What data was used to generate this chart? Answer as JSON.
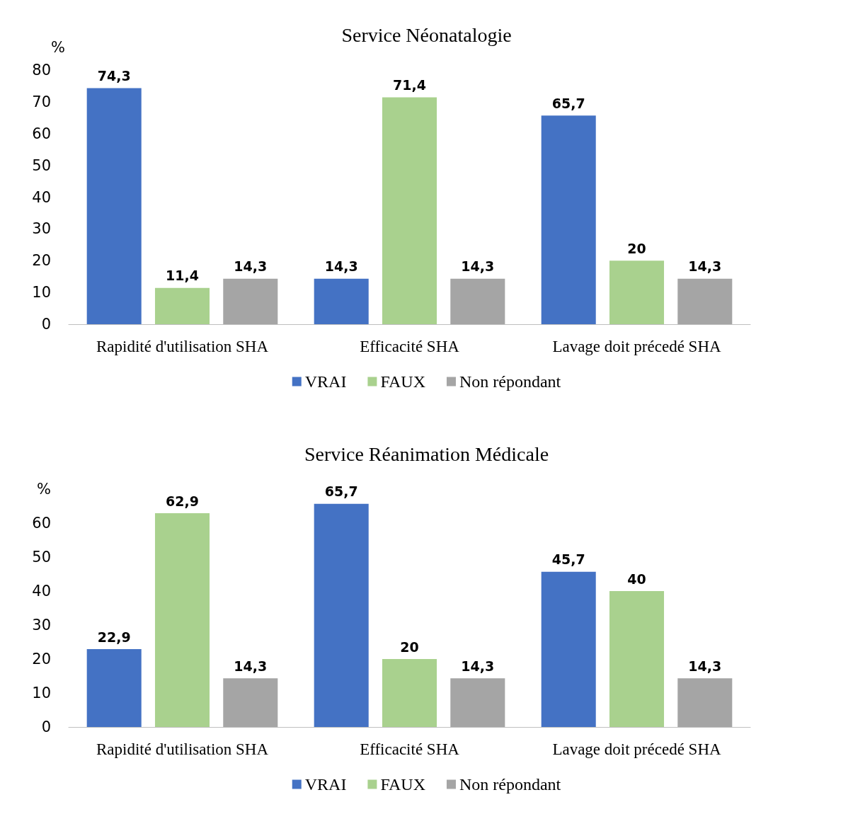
{
  "chart_data": [
    {
      "type": "bar",
      "title": "Service Néonatalogie",
      "ylabel": "%",
      "categories": [
        "Rapidité d'utilisation SHA",
        "Efficacité SHA",
        "Lavage doit précedé SHA"
      ],
      "series": [
        {
          "name": "VRAI",
          "color": "#4472c4",
          "values": [
            74.3,
            14.3,
            65.7
          ],
          "value_labels": [
            "74,3",
            "14,3",
            "65,7"
          ]
        },
        {
          "name": "FAUX",
          "color": "#a9d18e",
          "values": [
            11.4,
            71.4,
            20
          ],
          "value_labels": [
            "11,4",
            "71,4",
            "20"
          ]
        },
        {
          "name": "Non répondant",
          "color": "#a5a5a5",
          "values": [
            14.3,
            14.3,
            14.3
          ],
          "value_labels": [
            "14,3",
            "14,3",
            "14,3"
          ]
        }
      ],
      "ylim": [
        0,
        80
      ],
      "yticks": [
        0,
        10,
        20,
        30,
        40,
        50,
        60,
        70,
        80
      ],
      "grid": false,
      "legend": "bottom"
    },
    {
      "type": "bar",
      "title": "Service Réanimation Médicale",
      "categories": [
        "Rapidité d'utilisation SHA",
        "Efficacité SHA",
        "Lavage doit précedé SHA"
      ],
      "series": [
        {
          "name": "VRAI",
          "color": "#4472c4",
          "values": [
            22.9,
            65.7,
            45.7
          ],
          "value_labels": [
            "22,9",
            "65,7",
            "45,7"
          ]
        },
        {
          "name": "FAUX",
          "color": "#a9d18e",
          "values": [
            62.9,
            20,
            40
          ],
          "value_labels": [
            "62,9",
            "20",
            "40"
          ]
        },
        {
          "name": "Non répondant",
          "color": "#a5a5a5",
          "values": [
            14.3,
            14.3,
            14.3
          ],
          "value_labels": [
            "14,3",
            "14,3",
            "14,3"
          ]
        }
      ],
      "ylim": [
        0,
        70
      ],
      "yticks": [
        0,
        10,
        20,
        30,
        40,
        50,
        60,
        {
          "value": 70,
          "label": "%"
        }
      ],
      "grid": false,
      "legend": "bottom"
    }
  ]
}
